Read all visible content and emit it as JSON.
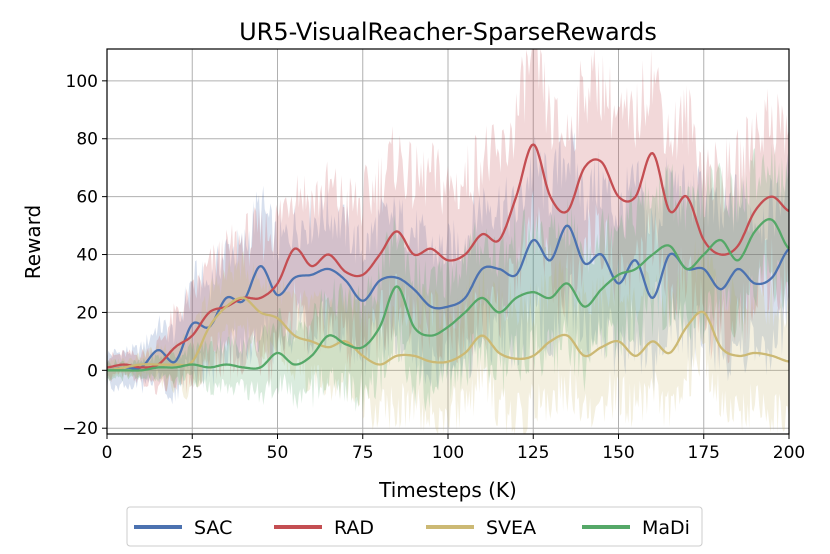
{
  "chart_data": {
    "type": "line",
    "title": "UR5-VisualReacher-SparseRewards",
    "xlabel": "Timesteps (K)",
    "ylabel": "Reward",
    "xlim": [
      0,
      200
    ],
    "ylim": [
      -22,
      111
    ],
    "x_ticks": [
      0,
      25,
      50,
      75,
      100,
      125,
      150,
      175,
      200
    ],
    "y_ticks": [
      -20,
      0,
      20,
      40,
      60,
      80,
      100
    ],
    "grid": true,
    "legend_position": "bottom-center",
    "shaded_band": "min-max range around each mean curve",
    "x": [
      0,
      5,
      10,
      15,
      20,
      25,
      30,
      35,
      40,
      45,
      50,
      55,
      60,
      65,
      70,
      75,
      80,
      85,
      90,
      95,
      100,
      105,
      110,
      115,
      120,
      125,
      130,
      135,
      140,
      145,
      150,
      155,
      160,
      165,
      170,
      175,
      180,
      185,
      190,
      195,
      200
    ],
    "series": [
      {
        "name": "SAC",
        "color": "#4c72b0",
        "values": [
          0,
          1,
          1,
          7,
          3,
          16,
          15,
          25,
          24,
          36,
          26,
          32,
          33,
          35,
          31,
          24,
          31,
          32,
          28,
          22,
          22,
          25,
          35,
          35,
          33,
          45,
          38,
          50,
          37,
          40,
          30,
          38,
          25,
          40,
          35,
          35,
          28,
          35,
          30,
          32,
          42
        ],
        "band_width": [
          6,
          6,
          7,
          9,
          12,
          16,
          17,
          18,
          20,
          22,
          20,
          20,
          21,
          21,
          20,
          20,
          22,
          22,
          22,
          22,
          22,
          23,
          25,
          25,
          25,
          28,
          27,
          28,
          27,
          27,
          27,
          27,
          27,
          27,
          27,
          27,
          26,
          26,
          26,
          26,
          26
        ]
      },
      {
        "name": "RAD",
        "color": "#c44e52",
        "values": [
          1,
          2,
          1,
          2,
          8,
          12,
          20,
          22,
          25,
          25,
          30,
          42,
          36,
          40,
          34,
          33,
          40,
          48,
          40,
          42,
          38,
          40,
          47,
          45,
          60,
          78,
          60,
          55,
          70,
          72,
          60,
          60,
          75,
          55,
          60,
          45,
          40,
          43,
          55,
          60,
          55
        ],
        "band_width": [
          4,
          4,
          5,
          8,
          12,
          15,
          17,
          20,
          22,
          24,
          24,
          24,
          25,
          25,
          26,
          28,
          28,
          28,
          28,
          28,
          28,
          28,
          30,
          30,
          30,
          32,
          30,
          30,
          30,
          30,
          30,
          30,
          30,
          30,
          30,
          30,
          30,
          30,
          30,
          30,
          30
        ]
      },
      {
        "name": "SVEA",
        "color": "#ccb974",
        "values": [
          0,
          1,
          2,
          2,
          2,
          3,
          15,
          22,
          25,
          20,
          18,
          12,
          10,
          8,
          10,
          5,
          2,
          5,
          5,
          3,
          3,
          6,
          12,
          6,
          4,
          5,
          10,
          12,
          5,
          8,
          10,
          5,
          10,
          6,
          15,
          20,
          8,
          5,
          6,
          5,
          3
        ],
        "band_width": [
          3,
          3,
          4,
          6,
          8,
          10,
          12,
          12,
          12,
          12,
          12,
          12,
          14,
          14,
          16,
          17,
          18,
          19,
          19,
          19,
          19,
          19,
          20,
          20,
          20,
          20,
          20,
          20,
          20,
          20,
          20,
          20,
          20,
          20,
          20,
          20,
          20,
          20,
          20,
          20,
          20
        ]
      },
      {
        "name": "MaDi",
        "color": "#55a868",
        "values": [
          0,
          0,
          0,
          1,
          1,
          2,
          1,
          2,
          1,
          1,
          6,
          2,
          5,
          12,
          9,
          8,
          15,
          29,
          15,
          12,
          15,
          20,
          25,
          20,
          25,
          27,
          25,
          30,
          22,
          28,
          33,
          35,
          40,
          43,
          35,
          40,
          45,
          38,
          48,
          52,
          42
        ],
        "band_width": [
          3,
          3,
          3,
          4,
          5,
          6,
          8,
          8,
          9,
          10,
          12,
          12,
          14,
          15,
          16,
          17,
          19,
          20,
          20,
          20,
          20,
          20,
          22,
          22,
          22,
          22,
          22,
          22,
          22,
          22,
          22,
          22,
          22,
          22,
          22,
          22,
          22,
          22,
          22,
          22,
          22
        ]
      }
    ]
  }
}
